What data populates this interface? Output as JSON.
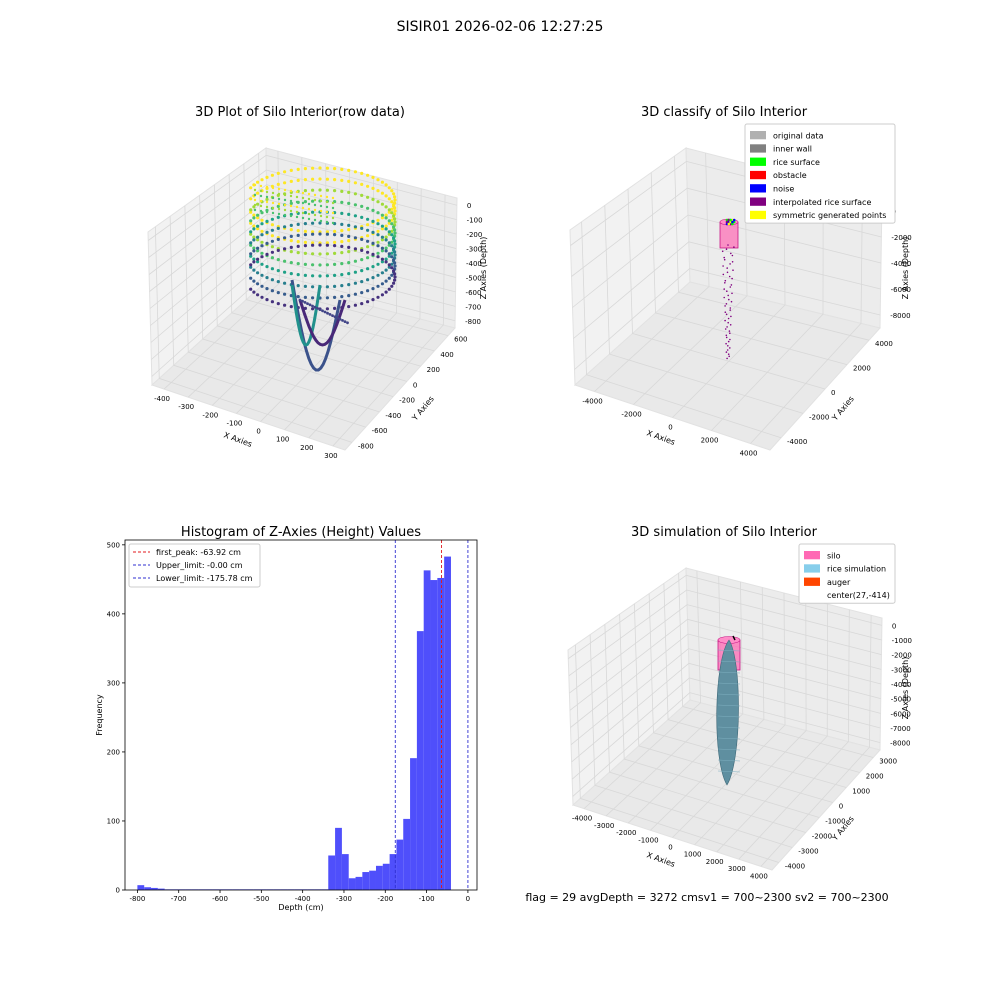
{
  "figure": {
    "suptitle": "SISIR01 2026-02-06 12:27:25",
    "status_text": "flag = 29  avgDepth = 3272 cmsv1 = 700~2300  sv2 = 700~2300"
  },
  "colors": {
    "hist_bar": "#4f4ffb",
    "first_peak": "#e31a1c",
    "upper_limit": "#2f2fd0",
    "lower_limit": "#2f2fd0",
    "silo": "#ff69b4",
    "rice_simulation": "#87ceeb",
    "auger": "#ff4500",
    "grid": "#d8d8d8",
    "pane": "#f2f2f2"
  },
  "chart_data": [
    {
      "id": "raw3d",
      "type": "scatter",
      "title": "3D Plot of Silo Interior(row data)",
      "xlabel": "X Axies",
      "ylabel": "Y Axies",
      "zlabel": "Z Axies (Depth)",
      "x_ticks": [
        "-400",
        "-300",
        "-200",
        "-100",
        "0",
        "100",
        "200",
        "300"
      ],
      "y_ticks": [
        "-800",
        "-600",
        "-400",
        "-200",
        "0",
        "200",
        "400",
        "600"
      ],
      "z_ticks": [
        "0",
        "-100",
        "-200",
        "-300",
        "-400",
        "-500",
        "-600",
        "-700",
        "-800"
      ],
      "xlim": [
        -450,
        300
      ],
      "ylim": [
        -850,
        700
      ],
      "zlim": [
        -850,
        30
      ],
      "colormap": "viridis",
      "series": [
        {
          "values": [
            [
              -380,
              0,
              -20
            ],
            [
              -300,
              400,
              -40
            ],
            [
              -100,
              550,
              -60
            ],
            [
              100,
              450,
              -80
            ],
            [
              250,
              100,
              -120
            ],
            [
              200,
              -300,
              -200
            ],
            [
              -100,
              -500,
              -300
            ],
            [
              -350,
              -300,
              -330
            ],
            [
              -200,
              -100,
              -580
            ],
            [
              -80,
              -150,
              -800
            ],
            [
              50,
              -100,
              -700
            ]
          ]
        }
      ]
    },
    {
      "id": "classify3d",
      "type": "scatter",
      "title": "3D classify of Silo Interior",
      "xlabel": "X Axies",
      "ylabel": "Y Axies",
      "zlabel": "Z Axies (Depth)",
      "x_ticks": [
        "-4000",
        "-2000",
        "0",
        "2000",
        "4000"
      ],
      "y_ticks": [
        "-4000",
        "-2000",
        "0",
        "2000",
        "4000"
      ],
      "z_ticks": [
        "0",
        "-2000",
        "-4000",
        "-6000",
        "-8000"
      ],
      "legend": [
        "original data",
        "inner wall",
        "rice surface",
        "obstacle",
        "noise",
        "interpolated rice surface",
        "symmetric generated points"
      ],
      "legend_colors": [
        "#b0b0b0",
        "#808080",
        "#00ff00",
        "#ff0000",
        "#0000ff",
        "#800080",
        "#ffff00"
      ],
      "legend_position": "top-right"
    },
    {
      "id": "hist",
      "type": "bar",
      "title": "Histogram of Z-Axies (Height) Values",
      "xlabel": "Depth (cm)",
      "ylabel": "Frequency",
      "x_ticks": [
        "-800",
        "-700",
        "-600",
        "-500",
        "-400",
        "-300",
        "-200",
        "-100",
        "0"
      ],
      "y_ticks": [
        "0",
        "100",
        "200",
        "300",
        "400",
        "500"
      ],
      "xlim": [
        -830,
        22
      ],
      "ylim": [
        0,
        507
      ],
      "bin_width": 16.5,
      "bin_start": -800,
      "counts": [
        7,
        4,
        3,
        2,
        1,
        1,
        1,
        1,
        1,
        1,
        1,
        1,
        1,
        1,
        1,
        1,
        1,
        1,
        1,
        1,
        1,
        1,
        1,
        1,
        1,
        1,
        1,
        1,
        50,
        90,
        52,
        17,
        19,
        26,
        28,
        35,
        38,
        52,
        73,
        103,
        191,
        375,
        463,
        449,
        452,
        483
      ],
      "vlines": [
        {
          "label": "first_peak: -63.92 cm",
          "x": -63.92,
          "color": "first_peak"
        },
        {
          "label": "Upper_limit: -0.00 cm",
          "x": 0,
          "color": "upper_limit"
        },
        {
          "label": "Lower_limit: -175.78 cm",
          "x": -175.78,
          "color": "lower_limit"
        }
      ],
      "legend_position": "top-left"
    },
    {
      "id": "sim3d",
      "type": "scatter",
      "title": "3D simulation of Silo Interior",
      "xlabel": "X Axies",
      "ylabel": "Y Axies",
      "zlabel": "Z Axies (Depth)",
      "x_ticks": [
        "-4000",
        "-3000",
        "-2000",
        "-1000",
        "0",
        "1000",
        "2000",
        "3000",
        "4000"
      ],
      "y_ticks": [
        "-4000",
        "-3000",
        "-2000",
        "-1000",
        "0",
        "1000",
        "2000",
        "3000"
      ],
      "z_ticks": [
        "0",
        "-1000",
        "-2000",
        "-3000",
        "-4000",
        "-5000",
        "-6000",
        "-7000",
        "-8000"
      ],
      "legend": [
        "silo",
        "rice simulation",
        "auger",
        "center(27,-414)"
      ],
      "legend_colors": [
        "#ff69b4",
        "#87ceeb",
        "#ff4500",
        ""
      ],
      "legend_position": "top-right"
    }
  ]
}
